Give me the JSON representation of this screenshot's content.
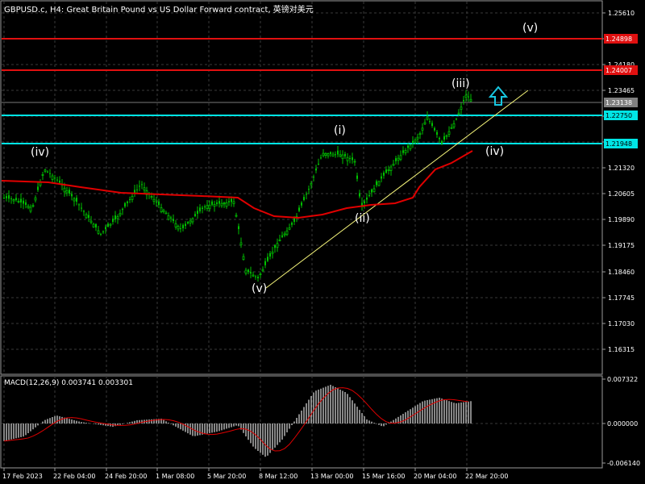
{
  "header": {
    "title": "GBPUSD.c, H4:  Great Britain Pound vs US Dollar Forward contract, 英镑对美元"
  },
  "colors": {
    "background": "#000000",
    "grid": "#3a3a3a",
    "bull_candle": "#00c000",
    "bear_candle": "#00c000",
    "moving_average": "#e00000",
    "resistance": "#e01010",
    "support": "#00e5e5",
    "trendline": "#f5f57a",
    "macd_hist": "#c0c0c0",
    "macd_signal": "#e00000",
    "arrow": "#17c7e0"
  },
  "price_axis": {
    "labels": [
      "1.25610",
      "1.24895",
      "1.24180",
      "1.23465",
      "1.22750",
      "1.22035",
      "1.21320",
      "1.20605",
      "1.19890",
      "1.19175",
      "1.18460",
      "1.17745",
      "1.17030",
      "1.16315"
    ],
    "tagged": [
      {
        "text": "1.24898",
        "color": "#e01010"
      },
      {
        "text": "1.24007",
        "color": "#e01010"
      },
      {
        "text": "1.23138",
        "color": "#808080"
      },
      {
        "text": "1.22750",
        "color": "#00e5e5"
      },
      {
        "text": "1.21948",
        "color": "#00e5e5"
      }
    ]
  },
  "time_axis": {
    "labels": [
      "17 Feb 2023",
      "22 Feb 04:00",
      "24 Feb 20:00",
      "1 Mar 08:00",
      "5 Mar 20:00",
      "8 Mar 12:00",
      "13 Mar 00:00",
      "15 Mar 16:00",
      "20 Mar 04:00",
      "22 Mar 20:00"
    ]
  },
  "wave_labels": [
    "(iv)",
    "(v)",
    "(i)",
    "(ii)",
    "(iii)",
    "(iv)",
    "(v)"
  ],
  "macd": {
    "title": "MACD(12,26,9) 0.003741 0.003301",
    "axis_labels": [
      "0.007322",
      "0.000000",
      "-0.006140"
    ]
  }
}
